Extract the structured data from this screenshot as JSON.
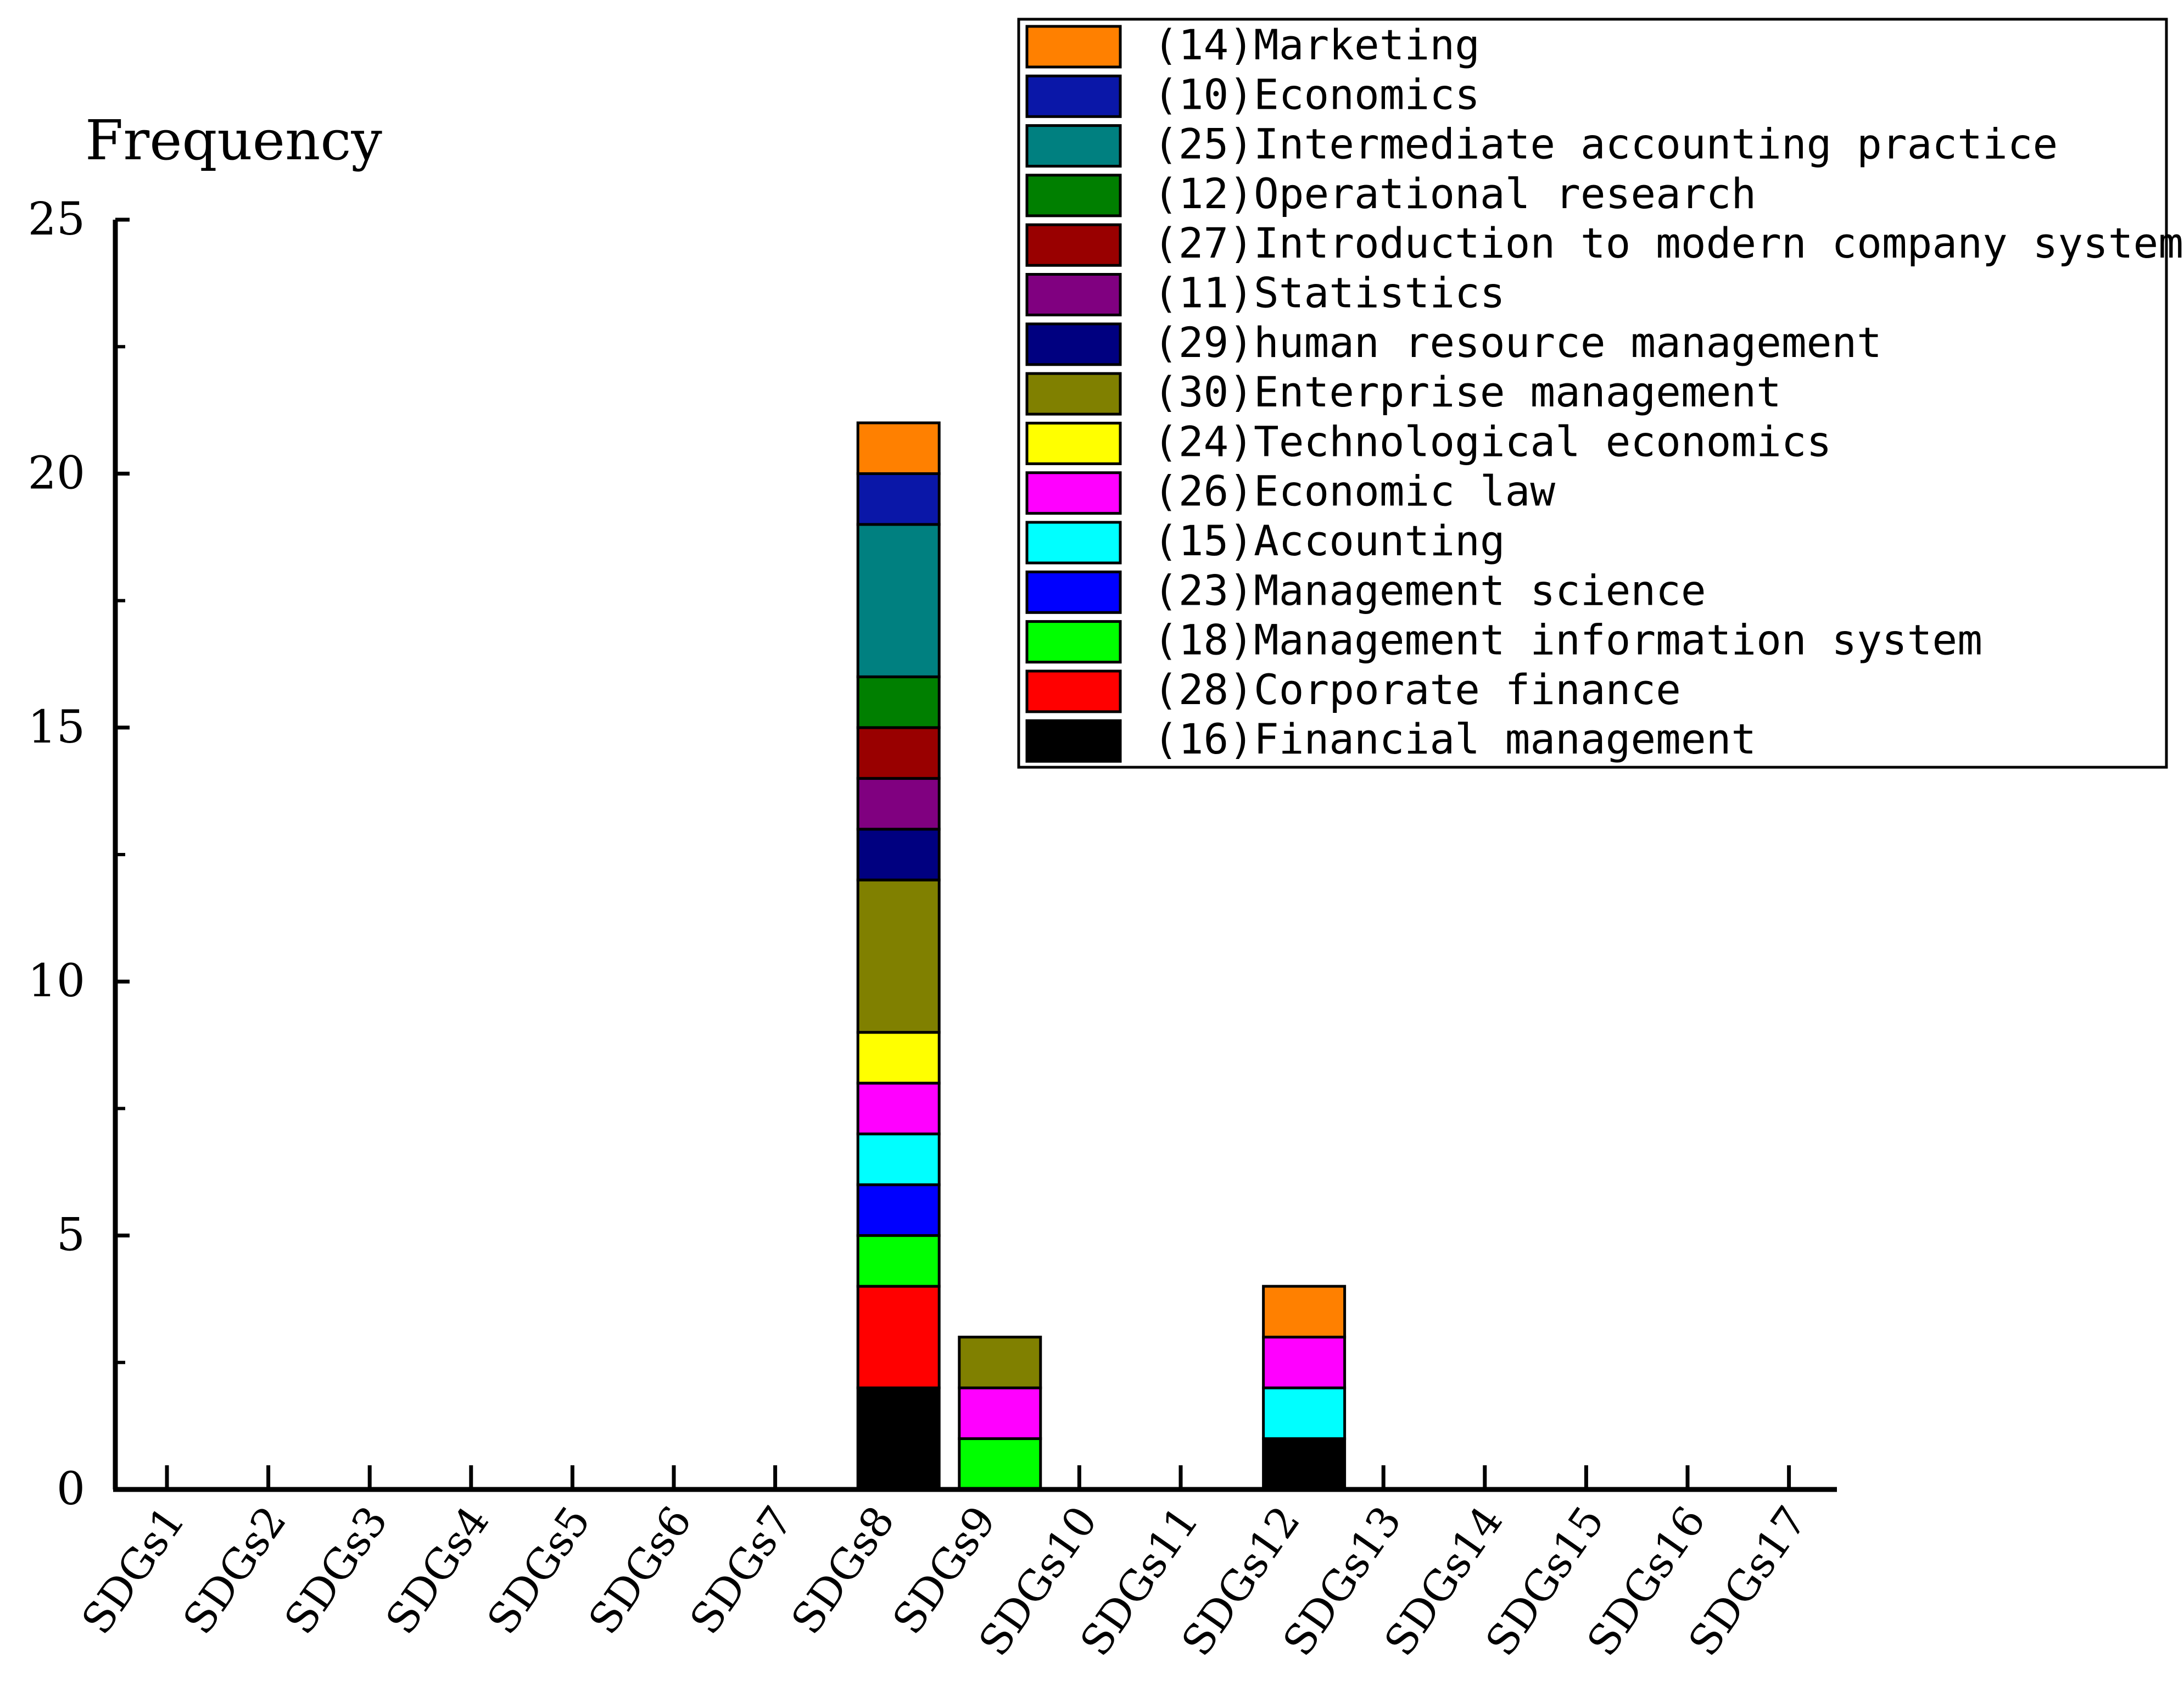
{
  "chart_data": {
    "type": "bar",
    "stacked": true,
    "ylabel": "Frequency",
    "xlabel": "",
    "ylim": [
      0,
      25
    ],
    "yticks": [
      "0",
      "5",
      "10",
      "15",
      "20",
      "25"
    ],
    "categories": [
      "SDGs1",
      "SDGs2",
      "SDGs3",
      "SDGs4",
      "SDGs5",
      "SDGs6",
      "SDGs7",
      "SDGs8",
      "SDGs9",
      "SDGs10",
      "SDGs11",
      "SDGs12",
      "SDGs13",
      "SDGs14",
      "SDGs15",
      "SDGs16",
      "SDGs17"
    ],
    "legend_position": "top-right",
    "series": [
      {
        "name": "(16)Financial management",
        "color": "#000000",
        "values": [
          0,
          0,
          0,
          0,
          0,
          0,
          0,
          2,
          0,
          0,
          0,
          1,
          0,
          0,
          0,
          0,
          0
        ]
      },
      {
        "name": "(28)Corporate finance",
        "color": "#ff0000",
        "values": [
          0,
          0,
          0,
          0,
          0,
          0,
          0,
          2,
          0,
          0,
          0,
          0,
          0,
          0,
          0,
          0,
          0
        ]
      },
      {
        "name": "(18)Management information system",
        "color": "#00ff00",
        "values": [
          0,
          0,
          0,
          0,
          0,
          0,
          0,
          1,
          1,
          0,
          0,
          0,
          0,
          0,
          0,
          0,
          0
        ]
      },
      {
        "name": "(23)Management science",
        "color": "#0000ff",
        "values": [
          0,
          0,
          0,
          0,
          0,
          0,
          0,
          1,
          0,
          0,
          0,
          0,
          0,
          0,
          0,
          0,
          0
        ]
      },
      {
        "name": "(15)Accounting",
        "color": "#00ffff",
        "values": [
          0,
          0,
          0,
          0,
          0,
          0,
          0,
          1,
          0,
          0,
          0,
          1,
          0,
          0,
          0,
          0,
          0
        ]
      },
      {
        "name": "(26)Economic law",
        "color": "#ff00ff",
        "values": [
          0,
          0,
          0,
          0,
          0,
          0,
          0,
          1,
          1,
          0,
          0,
          1,
          0,
          0,
          0,
          0,
          0
        ]
      },
      {
        "name": "(24)Technological economics",
        "color": "#ffff00",
        "values": [
          0,
          0,
          0,
          0,
          0,
          0,
          0,
          1,
          0,
          0,
          0,
          0,
          0,
          0,
          0,
          0,
          0
        ]
      },
      {
        "name": "(30)Enterprise management",
        "color": "#808000",
        "values": [
          0,
          0,
          0,
          0,
          0,
          0,
          0,
          3,
          1,
          0,
          0,
          0,
          0,
          0,
          0,
          0,
          0
        ]
      },
      {
        "name": "(29)human resource management",
        "color": "#000080",
        "values": [
          0,
          0,
          0,
          0,
          0,
          0,
          0,
          1,
          0,
          0,
          0,
          0,
          0,
          0,
          0,
          0,
          0
        ]
      },
      {
        "name": "(11)Statistics",
        "color": "#800080",
        "values": [
          0,
          0,
          0,
          0,
          0,
          0,
          0,
          1,
          0,
          0,
          0,
          0,
          0,
          0,
          0,
          0,
          0
        ]
      },
      {
        "name": "(27)Introduction to modern company system",
        "color": "#990000",
        "values": [
          0,
          0,
          0,
          0,
          0,
          0,
          0,
          1,
          0,
          0,
          0,
          0,
          0,
          0,
          0,
          0,
          0
        ]
      },
      {
        "name": "(12)Operational research",
        "color": "#007f00",
        "values": [
          0,
          0,
          0,
          0,
          0,
          0,
          0,
          1,
          0,
          0,
          0,
          0,
          0,
          0,
          0,
          0,
          0
        ]
      },
      {
        "name": "(25)Intermediate accounting practice",
        "color": "#008080",
        "values": [
          0,
          0,
          0,
          0,
          0,
          0,
          0,
          3,
          0,
          0,
          0,
          0,
          0,
          0,
          0,
          0,
          0
        ]
      },
      {
        "name": "(10)Economics",
        "color": "#0a17a8",
        "values": [
          0,
          0,
          0,
          0,
          0,
          0,
          0,
          1,
          0,
          0,
          0,
          0,
          0,
          0,
          0,
          0,
          0
        ]
      },
      {
        "name": "(14)Marketing",
        "color": "#ff8000",
        "values": [
          0,
          0,
          0,
          0,
          0,
          0,
          0,
          1,
          0,
          0,
          0,
          1,
          0,
          0,
          0,
          0,
          0
        ]
      }
    ]
  }
}
